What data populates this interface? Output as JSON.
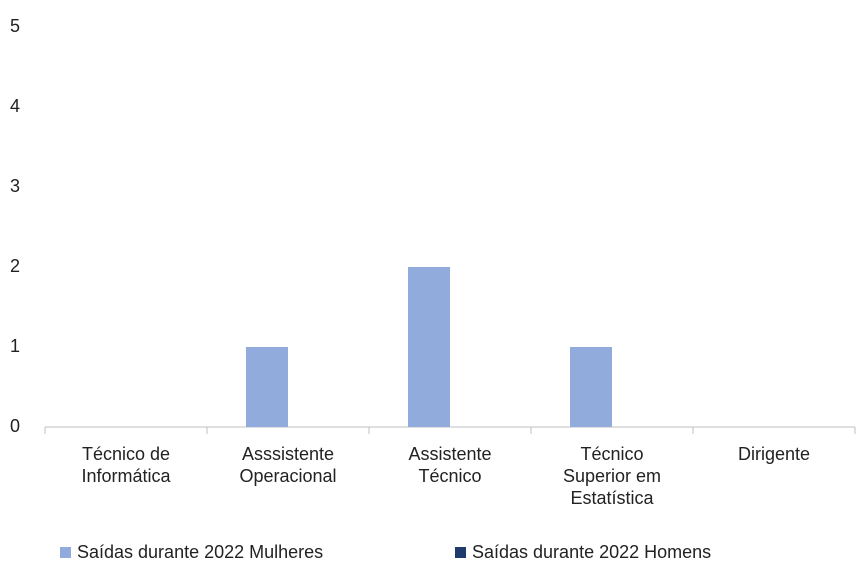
{
  "chart_data": {
    "type": "bar",
    "categories": [
      "Técnico de Informática",
      "Asssistente Operacional",
      "Assistente Técnico",
      "Técnico Superior em Estatística",
      "Dirigente"
    ],
    "series": [
      {
        "name": "Saídas durante 2022 Mulheres",
        "color": "#91abdd",
        "values": [
          0,
          1,
          2,
          1,
          0
        ]
      },
      {
        "name": "Saídas durante 2022 Homens",
        "color": "#1f3b6e",
        "values": [
          0,
          0,
          0,
          0,
          0
        ]
      }
    ],
    "ylim": [
      0,
      5
    ],
    "yticks": [
      0,
      1,
      2,
      3,
      4,
      5
    ],
    "grid": false,
    "legend": "bottom"
  }
}
